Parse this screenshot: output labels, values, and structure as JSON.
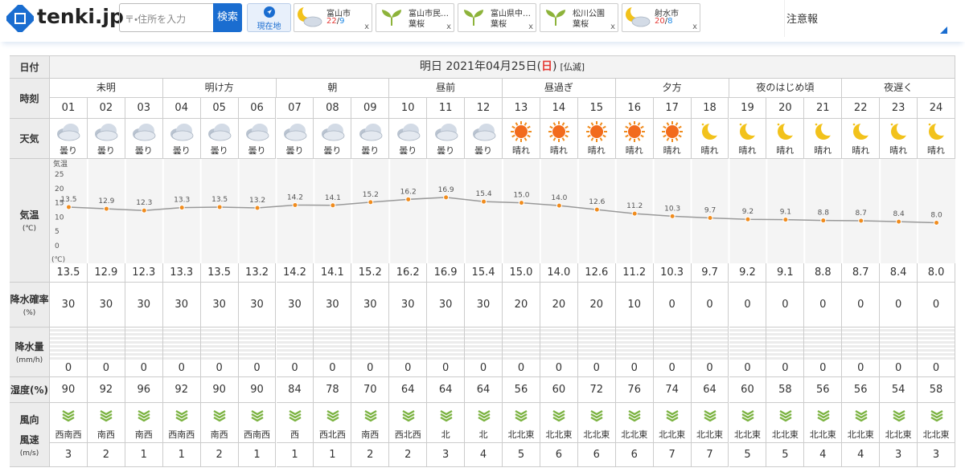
{
  "header": {
    "logo": "tenki.jp",
    "search_placeholder": "〒・住所を入力",
    "search_button": "検索",
    "location_button": "現在地",
    "favorites": [
      {
        "name": "富山市",
        "high": 22,
        "sep": "/",
        "low": 9,
        "close": "x"
      },
      {
        "name": "富山市民…",
        "sub": "葉桜",
        "close": "x"
      },
      {
        "name": "富山県中…",
        "sub": "葉桜",
        "close": "x"
      },
      {
        "name": "松川公園",
        "sub": "葉桜",
        "close": "x"
      },
      {
        "name": "射水市",
        "high": 20,
        "sep": "/",
        "low": 8,
        "close": "x"
      }
    ],
    "alert": "注意報"
  },
  "table": {
    "labels": {
      "date": "日付",
      "time": "時刻",
      "weather": "天気",
      "temp": "気温",
      "temp_unit": "(℃)",
      "prob": "降水確率",
      "prob_unit": "(%)",
      "amount": "降水量",
      "amount_unit": "(mm/h)",
      "humidity": "湿度(%)",
      "wind_dir": "風向",
      "wind_speed": "風速",
      "wind_unit": "(m/s)"
    },
    "date": {
      "prefix": "明日 2021年04月25日(",
      "day": "日",
      "suffix": ")",
      "rokuyo": "[仏滅]"
    },
    "periods": [
      "未明",
      "明け方",
      "朝",
      "昼前",
      "昼過ぎ",
      "夕方",
      "夜のはじめ頃",
      "夜遅く"
    ],
    "hours": [
      "01",
      "02",
      "03",
      "04",
      "05",
      "06",
      "07",
      "08",
      "09",
      "10",
      "11",
      "12",
      "13",
      "14",
      "15",
      "16",
      "17",
      "18",
      "19",
      "20",
      "21",
      "22",
      "23",
      "24"
    ],
    "weather": [
      "曇り",
      "曇り",
      "曇り",
      "曇り",
      "曇り",
      "曇り",
      "曇り",
      "曇り",
      "曇り",
      "曇り",
      "曇り",
      "曇り",
      "晴れ",
      "晴れ",
      "晴れ",
      "晴れ",
      "晴れ",
      "晴れ",
      "晴れ",
      "晴れ",
      "晴れ",
      "晴れ",
      "晴れ",
      "晴れ"
    ],
    "temperature": {
      "type": "line",
      "axis_title": "気温",
      "axis_unit": "(℃)",
      "color": "#999999",
      "point_color": "#f08c1e",
      "ylim": [
        0,
        25
      ],
      "yticks": [
        0,
        5,
        10,
        15,
        20,
        25
      ],
      "values": [
        13.5,
        12.9,
        12.3,
        13.3,
        13.5,
        13.2,
        14.2,
        14.1,
        15.2,
        16.2,
        16.9,
        15.4,
        15.0,
        14.0,
        12.6,
        11.2,
        10.3,
        9.7,
        9.2,
        9.1,
        8.8,
        8.7,
        8.4,
        8.0
      ],
      "value_labels": [
        "13.5",
        "12.9",
        "12.3",
        "13.3",
        "13.5",
        "13.2",
        "14.2",
        "14.1",
        "15.2",
        "16.2",
        "16.9",
        "15.4",
        "15.0",
        "14.0",
        "12.6",
        "11.2",
        "10.3",
        "9.7",
        "9.2",
        "9.1",
        "8.8",
        "8.7",
        "8.4",
        "8.0"
      ]
    },
    "precip_prob": [
      30,
      30,
      30,
      30,
      30,
      30,
      30,
      30,
      30,
      30,
      30,
      30,
      20,
      20,
      20,
      10,
      0,
      0,
      0,
      0,
      0,
      0,
      0,
      0
    ],
    "precip_amount": [
      0,
      0,
      0,
      0,
      0,
      0,
      0,
      0,
      0,
      0,
      0,
      0,
      0,
      0,
      0,
      0,
      0,
      0,
      0,
      0,
      0,
      0,
      0,
      0
    ],
    "humidity": [
      90,
      92,
      96,
      92,
      90,
      90,
      84,
      78,
      70,
      64,
      64,
      64,
      56,
      60,
      72,
      76,
      74,
      64,
      60,
      58,
      56,
      56,
      54,
      58
    ],
    "wind_direction": [
      "西南西",
      "南西",
      "南西",
      "西南西",
      "南西",
      "西南西",
      "西",
      "西北西",
      "南西",
      "西北西",
      "北",
      "北",
      "北北東",
      "北北東",
      "北北東",
      "北北東",
      "北北東",
      "北北東",
      "北北東",
      "北北東",
      "北北東",
      "北北東",
      "北北東",
      "北北東"
    ],
    "wind_speed": [
      3,
      2,
      1,
      1,
      2,
      1,
      1,
      1,
      2,
      2,
      3,
      4,
      5,
      6,
      6,
      6,
      7,
      7,
      5,
      5,
      4,
      4,
      3,
      3
    ]
  }
}
